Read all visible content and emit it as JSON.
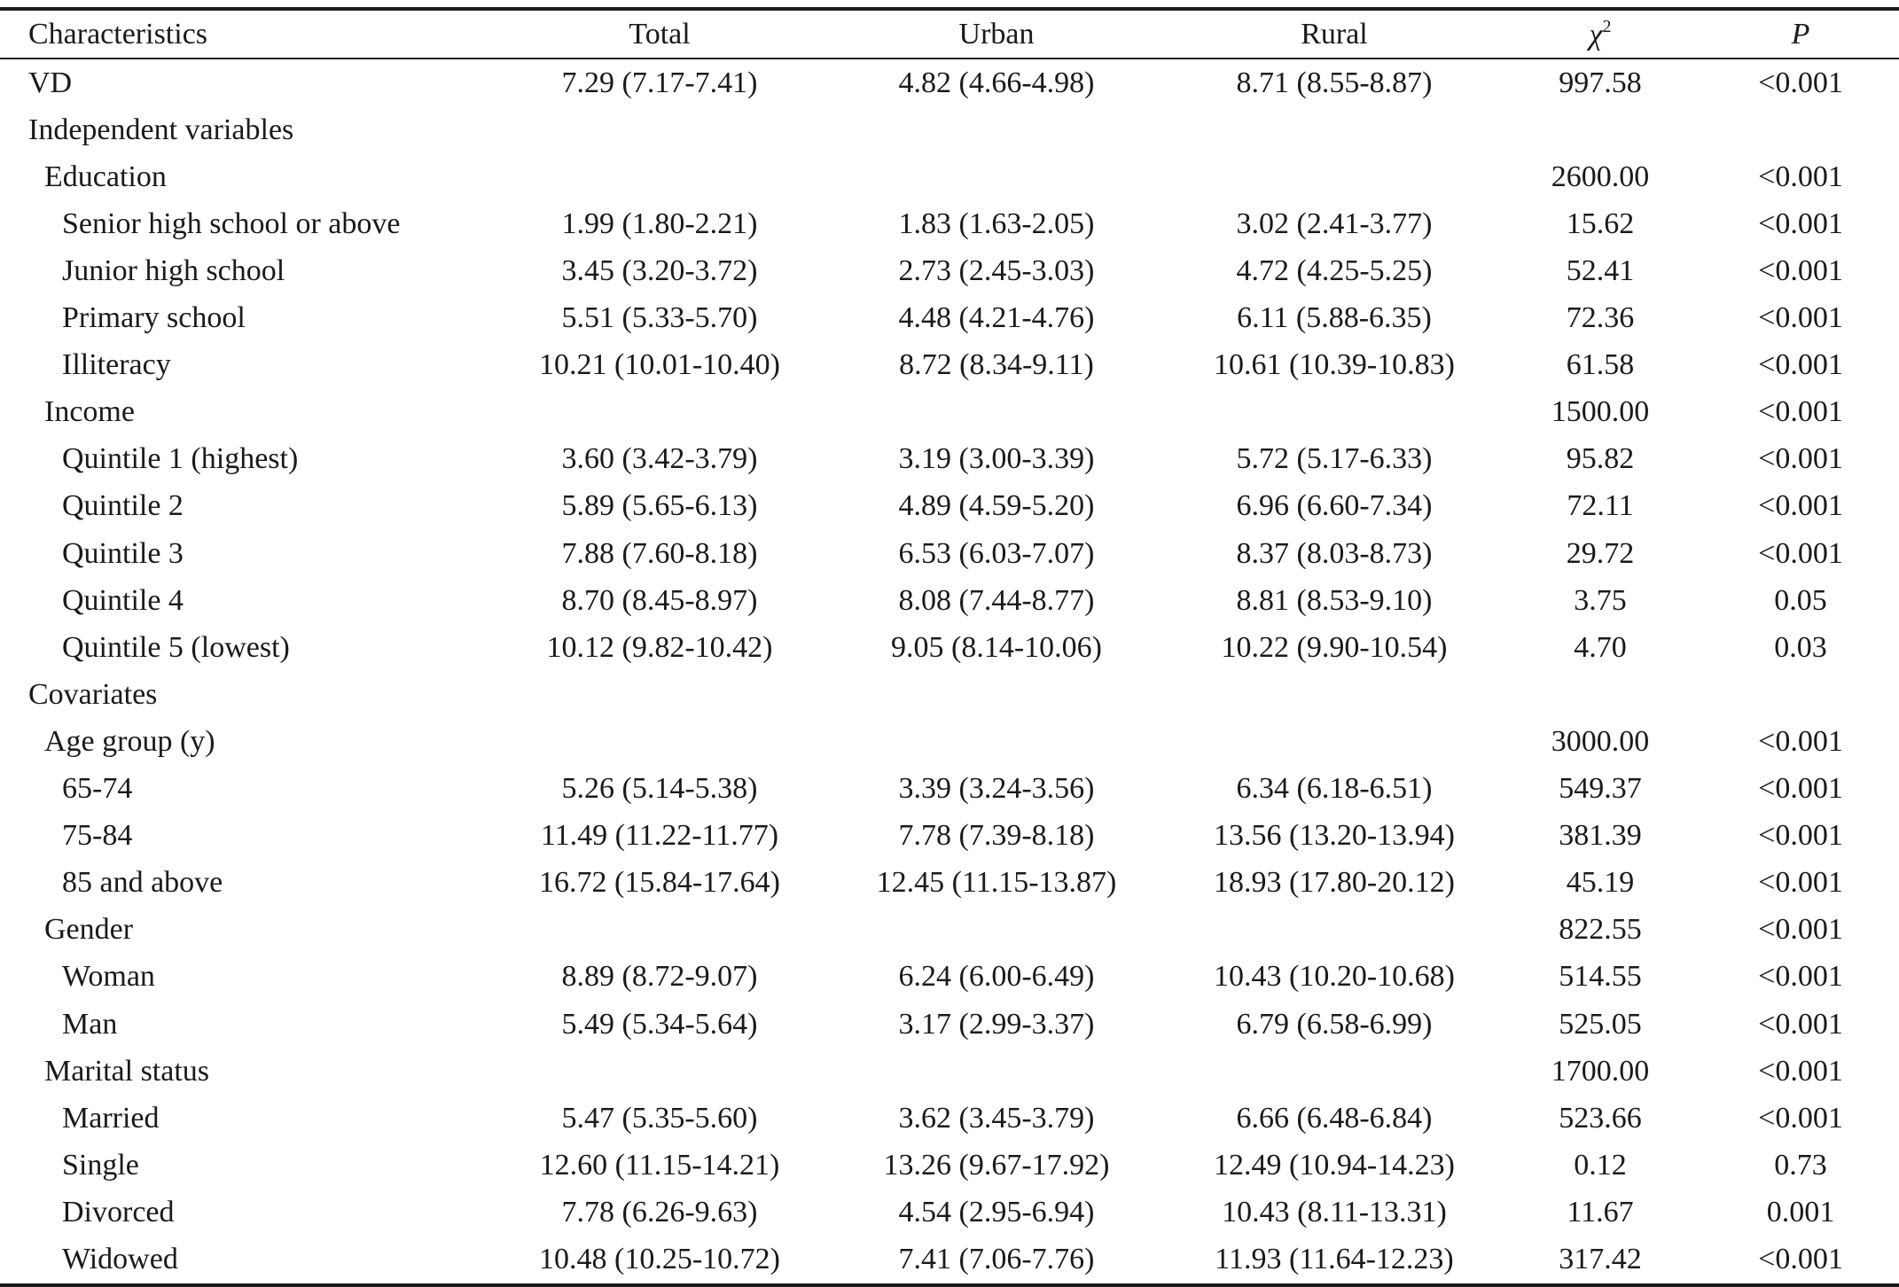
{
  "header": {
    "characteristics": "Characteristics",
    "total": "Total",
    "urban": "Urban",
    "rural": "Rural",
    "chi_symbol": "χ",
    "chi_exp": "2",
    "p": "P"
  },
  "rows": [
    {
      "label": "VD",
      "level": 0,
      "total": "7.29 (7.17-7.41)",
      "urban": "4.82 (4.66-4.98)",
      "rural": "8.71 (8.55-8.87)",
      "chi2": "997.58",
      "p": "<0.001"
    },
    {
      "label": "Independent variables",
      "level": 0,
      "total": "",
      "urban": "",
      "rural": "",
      "chi2": "",
      "p": ""
    },
    {
      "label": "Education",
      "level": 1,
      "total": "",
      "urban": "",
      "rural": "",
      "chi2": "2600.00",
      "p": "<0.001"
    },
    {
      "label": "Senior high school or above",
      "level": 2,
      "total": "1.99 (1.80-2.21)",
      "urban": "1.83 (1.63-2.05)",
      "rural": "3.02 (2.41-3.77)",
      "chi2": "15.62",
      "p": "<0.001"
    },
    {
      "label": "Junior high school",
      "level": 2,
      "total": "3.45 (3.20-3.72)",
      "urban": "2.73 (2.45-3.03)",
      "rural": "4.72 (4.25-5.25)",
      "chi2": "52.41",
      "p": "<0.001"
    },
    {
      "label": "Primary school",
      "level": 2,
      "total": "5.51 (5.33-5.70)",
      "urban": "4.48 (4.21-4.76)",
      "rural": "6.11 (5.88-6.35)",
      "chi2": "72.36",
      "p": "<0.001"
    },
    {
      "label": "Illiteracy",
      "level": 2,
      "total": "10.21 (10.01-10.40)",
      "urban": "8.72 (8.34-9.11)",
      "rural": "10.61 (10.39-10.83)",
      "chi2": "61.58",
      "p": "<0.001"
    },
    {
      "label": "Income",
      "level": 1,
      "total": "",
      "urban": "",
      "rural": "",
      "chi2": "1500.00",
      "p": "<0.001"
    },
    {
      "label": "Quintile 1 (highest)",
      "level": 2,
      "total": "3.60 (3.42-3.79)",
      "urban": "3.19 (3.00-3.39)",
      "rural": "5.72 (5.17-6.33)",
      "chi2": "95.82",
      "p": "<0.001"
    },
    {
      "label": "Quintile 2",
      "level": 2,
      "total": "5.89 (5.65-6.13)",
      "urban": "4.89 (4.59-5.20)",
      "rural": "6.96 (6.60-7.34)",
      "chi2": "72.11",
      "p": "<0.001"
    },
    {
      "label": "Quintile 3",
      "level": 2,
      "total": "7.88 (7.60-8.18)",
      "urban": "6.53 (6.03-7.07)",
      "rural": "8.37 (8.03-8.73)",
      "chi2": "29.72",
      "p": "<0.001"
    },
    {
      "label": "Quintile 4",
      "level": 2,
      "total": "8.70 (8.45-8.97)",
      "urban": "8.08 (7.44-8.77)",
      "rural": "8.81 (8.53-9.10)",
      "chi2": "3.75",
      "p": "0.05"
    },
    {
      "label": "Quintile 5 (lowest)",
      "level": 2,
      "total": "10.12 (9.82-10.42)",
      "urban": "9.05 (8.14-10.06)",
      "rural": "10.22 (9.90-10.54)",
      "chi2": "4.70",
      "p": "0.03"
    },
    {
      "label": "Covariates",
      "level": 0,
      "total": "",
      "urban": "",
      "rural": "",
      "chi2": "",
      "p": ""
    },
    {
      "label": "Age group (y)",
      "level": 1,
      "total": "",
      "urban": "",
      "rural": "",
      "chi2": "3000.00",
      "p": "<0.001"
    },
    {
      "label": "65-74",
      "level": 2,
      "total": "5.26 (5.14-5.38)",
      "urban": "3.39 (3.24-3.56)",
      "rural": "6.34 (6.18-6.51)",
      "chi2": "549.37",
      "p": "<0.001"
    },
    {
      "label": "75-84",
      "level": 2,
      "total": "11.49 (11.22-11.77)",
      "urban": "7.78 (7.39-8.18)",
      "rural": "13.56 (13.20-13.94)",
      "chi2": "381.39",
      "p": "<0.001"
    },
    {
      "label": "85 and above",
      "level": 2,
      "total": "16.72 (15.84-17.64)",
      "urban": "12.45 (11.15-13.87)",
      "rural": "18.93 (17.80-20.12)",
      "chi2": "45.19",
      "p": "<0.001"
    },
    {
      "label": "Gender",
      "level": 1,
      "total": "",
      "urban": "",
      "rural": "",
      "chi2": "822.55",
      "p": "<0.001"
    },
    {
      "label": "Woman",
      "level": 2,
      "total": "8.89 (8.72-9.07)",
      "urban": "6.24 (6.00-6.49)",
      "rural": "10.43 (10.20-10.68)",
      "chi2": "514.55",
      "p": "<0.001"
    },
    {
      "label": "Man",
      "level": 2,
      "total": "5.49 (5.34-5.64)",
      "urban": "3.17 (2.99-3.37)",
      "rural": "6.79 (6.58-6.99)",
      "chi2": "525.05",
      "p": "<0.001"
    },
    {
      "label": "Marital status",
      "level": 1,
      "total": "",
      "urban": "",
      "rural": "",
      "chi2": "1700.00",
      "p": "<0.001"
    },
    {
      "label": "Married",
      "level": 2,
      "total": "5.47 (5.35-5.60)",
      "urban": "3.62 (3.45-3.79)",
      "rural": "6.66 (6.48-6.84)",
      "chi2": "523.66",
      "p": "<0.001"
    },
    {
      "label": "Single",
      "level": 2,
      "total": "12.60 (11.15-14.21)",
      "urban": "13.26 (9.67-17.92)",
      "rural": "12.49 (10.94-14.23)",
      "chi2": "0.12",
      "p": "0.73"
    },
    {
      "label": "Divorced",
      "level": 2,
      "total": "7.78 (6.26-9.63)",
      "urban": "4.54 (2.95-6.94)",
      "rural": "10.43 (8.11-13.31)",
      "chi2": "11.67",
      "p": "0.001"
    },
    {
      "label": "Widowed",
      "level": 2,
      "total": "10.48 (10.25-10.72)",
      "urban": "7.41 (7.06-7.76)",
      "rural": "11.93 (11.64-12.23)",
      "chi2": "317.42",
      "p": "<0.001"
    }
  ]
}
